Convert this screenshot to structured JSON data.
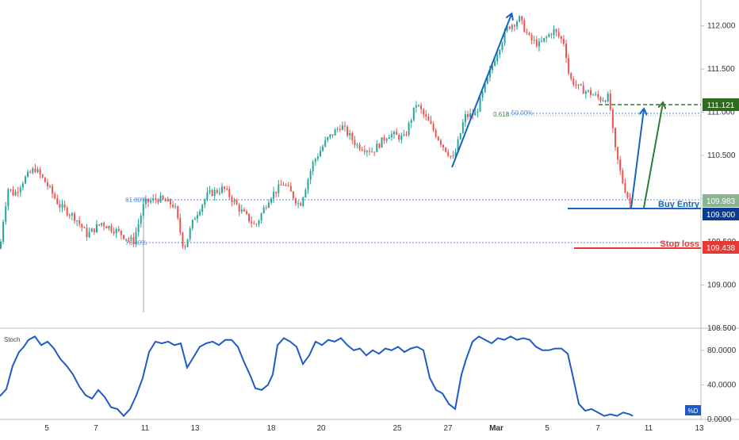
{
  "chart_data": [
    {
      "type": "candlestick",
      "panel": "price",
      "ylim": [
        108.5,
        112.3
      ],
      "yticks": [
        "112.000",
        "111.500",
        "111.000",
        "110.500",
        "110.000",
        "109.500",
        "109.000",
        "108.500"
      ],
      "x_tick_labels": [
        "5",
        "7",
        "11",
        "13",
        "18",
        "20",
        "25",
        "27",
        "Mar",
        "5",
        "7",
        "11",
        "13"
      ],
      "price_path": [
        [
          0,
          109.42
        ],
        [
          4,
          109.75
        ],
        [
          10,
          110.12
        ],
        [
          18,
          110.05
        ],
        [
          30,
          110.22
        ],
        [
          44,
          110.35
        ],
        [
          58,
          110.18
        ],
        [
          75,
          109.92
        ],
        [
          95,
          109.78
        ],
        [
          110,
          109.58
        ],
        [
          128,
          109.72
        ],
        [
          148,
          109.62
        ],
        [
          168,
          109.5
        ],
        [
          182,
          109.95
        ],
        [
          200,
          110.0
        ],
        [
          220,
          109.92
        ],
        [
          232,
          109.42
        ],
        [
          245,
          109.78
        ],
        [
          262,
          110.05
        ],
        [
          282,
          110.12
        ],
        [
          302,
          109.88
        ],
        [
          322,
          109.68
        ],
        [
          340,
          110.02
        ],
        [
          358,
          110.18
        ],
        [
          378,
          109.92
        ],
        [
          395,
          110.42
        ],
        [
          412,
          110.68
        ],
        [
          430,
          110.85
        ],
        [
          450,
          110.62
        ],
        [
          470,
          110.55
        ],
        [
          490,
          110.75
        ],
        [
          510,
          110.7
        ],
        [
          525,
          111.1
        ],
        [
          545,
          110.82
        ],
        [
          558,
          110.62
        ],
        [
          572,
          110.45
        ],
        [
          586,
          110.95
        ],
        [
          600,
          110.98
        ],
        [
          612,
          111.3
        ],
        [
          625,
          111.65
        ],
        [
          640,
          111.98
        ],
        [
          655,
          112.08
        ],
        [
          668,
          111.85
        ],
        [
          680,
          111.78
        ],
        [
          698,
          111.95
        ],
        [
          712,
          111.8
        ],
        [
          718,
          111.4
        ],
        [
          730,
          111.28
        ],
        [
          745,
          111.22
        ],
        [
          758,
          111.15
        ],
        [
          768,
          111.18
        ],
        [
          775,
          110.6
        ],
        [
          785,
          110.2
        ],
        [
          795,
          109.93
        ]
      ],
      "annotations": {
        "fib_labels": [
          "61.80%",
          "76.40%",
          "0.618",
          "50.00%"
        ],
        "buy_entry_label": "Buy Entry",
        "stop_loss_label": "Stop loss",
        "price_tags": [
          "111.121",
          "109.983",
          "109.900",
          "109.438"
        ],
        "levels": {
          "take_profit": 111.121,
          "fib_50": 111.0,
          "fib_618_left": 109.983,
          "buy_entry": 109.9,
          "fib_764": 109.57,
          "stop_loss": 109.438
        }
      },
      "colors": {
        "up": "#26a69a",
        "down": "#ef5350",
        "swing": "#1565c0",
        "target": "#2e7d32",
        "stop": "#e53935",
        "fib": "#5a8fdc"
      }
    },
    {
      "type": "line",
      "panel": "stoch",
      "title": "Stoch",
      "ylim": [
        0,
        100
      ],
      "yticks": [
        "80.0000",
        "40.0000",
        "0.0000"
      ],
      "legend_tag": "%D",
      "series": [
        {
          "name": "%D",
          "color": "#1e5bc6",
          "points": [
            [
              0,
              27
            ],
            [
              8,
              35
            ],
            [
              16,
              62
            ],
            [
              24,
              78
            ],
            [
              30,
              84
            ],
            [
              36,
              92
            ],
            [
              44,
              96
            ],
            [
              52,
              86
            ],
            [
              60,
              90
            ],
            [
              68,
              82
            ],
            [
              76,
              70
            ],
            [
              84,
              62
            ],
            [
              92,
              52
            ],
            [
              100,
              38
            ],
            [
              108,
              28
            ],
            [
              116,
              24
            ],
            [
              124,
              34
            ],
            [
              132,
              26
            ],
            [
              140,
              14
            ],
            [
              148,
              12
            ],
            [
              156,
              4
            ],
            [
              164,
              12
            ],
            [
              172,
              28
            ],
            [
              180,
              48
            ],
            [
              188,
              78
            ],
            [
              196,
              90
            ],
            [
              204,
              88
            ],
            [
              212,
              90
            ],
            [
              220,
              86
            ],
            [
              228,
              88
            ],
            [
              236,
              60
            ],
            [
              244,
              72
            ],
            [
              252,
              84
            ],
            [
              260,
              88
            ],
            [
              268,
              90
            ],
            [
              276,
              86
            ],
            [
              284,
              92
            ],
            [
              292,
              92
            ],
            [
              300,
              84
            ],
            [
              308,
              66
            ],
            [
              316,
              50
            ],
            [
              322,
              36
            ],
            [
              330,
              34
            ],
            [
              338,
              40
            ],
            [
              344,
              52
            ],
            [
              350,
              86
            ],
            [
              358,
              94
            ],
            [
              366,
              90
            ],
            [
              374,
              84
            ],
            [
              382,
              64
            ],
            [
              390,
              74
            ],
            [
              398,
              90
            ],
            [
              406,
              86
            ],
            [
              414,
              92
            ],
            [
              422,
              90
            ],
            [
              430,
              94
            ],
            [
              438,
              86
            ],
            [
              446,
              80
            ],
            [
              454,
              82
            ],
            [
              462,
              74
            ],
            [
              470,
              80
            ],
            [
              478,
              76
            ],
            [
              486,
              82
            ],
            [
              494,
              80
            ],
            [
              502,
              84
            ],
            [
              510,
              78
            ],
            [
              518,
              82
            ],
            [
              526,
              84
            ],
            [
              534,
              80
            ],
            [
              542,
              48
            ],
            [
              550,
              34
            ],
            [
              558,
              30
            ],
            [
              566,
              18
            ],
            [
              574,
              12
            ],
            [
              582,
              52
            ],
            [
              588,
              70
            ],
            [
              596,
              90
            ],
            [
              604,
              96
            ],
            [
              612,
              92
            ],
            [
              620,
              88
            ],
            [
              628,
              94
            ],
            [
              636,
              92
            ],
            [
              644,
              96
            ],
            [
              652,
              92
            ],
            [
              660,
              94
            ],
            [
              668,
              92
            ],
            [
              676,
              84
            ],
            [
              684,
              80
            ],
            [
              692,
              80
            ],
            [
              700,
              82
            ],
            [
              708,
              82
            ],
            [
              716,
              76
            ],
            [
              722,
              52
            ],
            [
              730,
              18
            ],
            [
              738,
              10
            ],
            [
              746,
              12
            ],
            [
              754,
              8
            ],
            [
              762,
              4
            ],
            [
              770,
              6
            ],
            [
              778,
              4
            ],
            [
              786,
              8
            ],
            [
              794,
              6
            ],
            [
              798,
              4
            ]
          ]
        }
      ]
    }
  ]
}
